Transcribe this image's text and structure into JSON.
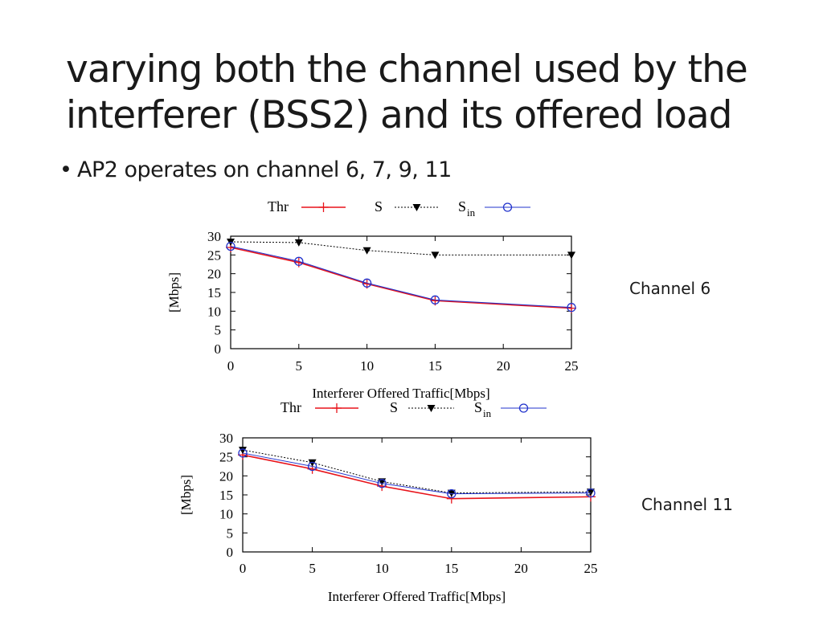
{
  "slide": {
    "title_lines": [
      "varying both the channel used by the",
      "interferer (BSS2) and its offered load"
    ],
    "bullet": "AP2 operates on channel 6, 7, 9, 11"
  },
  "chart_data": [
    {
      "type": "line",
      "side_label": "Channel 6",
      "xlabel": "Interferer Offered Traffic[Mbps]",
      "ylabel": "[Mbps]",
      "xlim": [
        0,
        25
      ],
      "ylim": [
        0,
        30
      ],
      "xticks": [
        0,
        5,
        10,
        15,
        20,
        25
      ],
      "yticks": [
        0,
        5,
        10,
        15,
        20,
        25,
        30
      ],
      "legend": [
        "Thr",
        "S",
        "S"
      ],
      "legend_subscript": "in",
      "x": [
        0,
        5,
        10,
        15,
        25
      ],
      "series": [
        {
          "name": "Thr",
          "color": "#e8141b",
          "values": [
            27,
            23,
            17.3,
            12.8,
            10.8
          ]
        },
        {
          "name": "S",
          "color": "#000000",
          "values": [
            28.5,
            28.3,
            26.2,
            25,
            25
          ]
        },
        {
          "name": "Sin",
          "color": "#2233cc",
          "values": [
            27.3,
            23.3,
            17.5,
            13,
            11
          ]
        }
      ]
    },
    {
      "type": "line",
      "side_label": "Channel 11",
      "xlabel": "Interferer Offered Traffic[Mbps]",
      "ylabel": "[Mbps]",
      "xlim": [
        0,
        25
      ],
      "ylim": [
        0,
        30
      ],
      "xticks": [
        0,
        5,
        10,
        15,
        20,
        25
      ],
      "yticks": [
        0,
        5,
        10,
        15,
        20,
        25,
        30
      ],
      "legend": [
        "Thr",
        "S",
        "S"
      ],
      "legend_subscript": "in",
      "x": [
        0,
        5,
        10,
        15,
        25
      ],
      "series": [
        {
          "name": "Thr",
          "color": "#e8141b",
          "values": [
            25.5,
            21.8,
            17.3,
            14,
            14.5
          ]
        },
        {
          "name": "S",
          "color": "#000000",
          "values": [
            26.8,
            23.5,
            18.5,
            15.5,
            15.8
          ]
        },
        {
          "name": "Sin",
          "color": "#2233cc",
          "values": [
            26,
            22.5,
            18,
            15.3,
            15.5
          ]
        }
      ]
    }
  ]
}
